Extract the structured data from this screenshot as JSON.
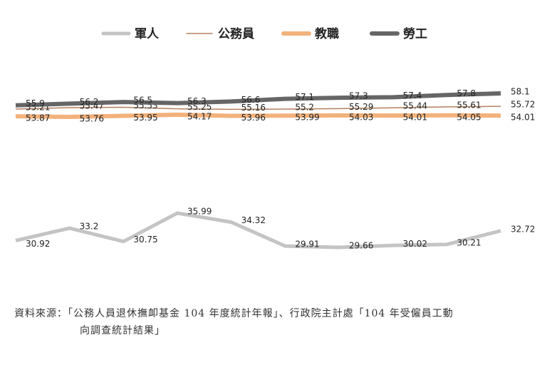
{
  "chart_data": {
    "type": "line",
    "categories": [
      null,
      null,
      null,
      null,
      null,
      null,
      null,
      null,
      null,
      null
    ],
    "series": [
      {
        "name": "軍人",
        "color": "#c4c4c4",
        "values": [
          30.92,
          33.2,
          30.75,
          35.99,
          34.32,
          29.91,
          29.66,
          30.02,
          30.21,
          32.72
        ]
      },
      {
        "name": "公務員",
        "color": "#b5805f",
        "values": [
          55.21,
          55.47,
          55.53,
          55.25,
          55.16,
          55.2,
          55.29,
          55.44,
          55.61,
          55.72
        ]
      },
      {
        "name": "教職",
        "color": "#f2b27c",
        "values": [
          53.87,
          53.76,
          53.95,
          54.17,
          53.96,
          53.99,
          54.03,
          54.01,
          54.05,
          54.01
        ]
      },
      {
        "name": "勞工",
        "color": "#666666",
        "values": [
          55.9,
          56.2,
          56.5,
          56.3,
          56.6,
          57.1,
          57.3,
          57.4,
          57.8,
          58.1
        ]
      }
    ],
    "source": [
      "資料來源：「公務人員退休撫卹基金 104 年度統計年報」、行政院主計處「104 年受僱員工動",
      "向調查統計結果」"
    ]
  }
}
